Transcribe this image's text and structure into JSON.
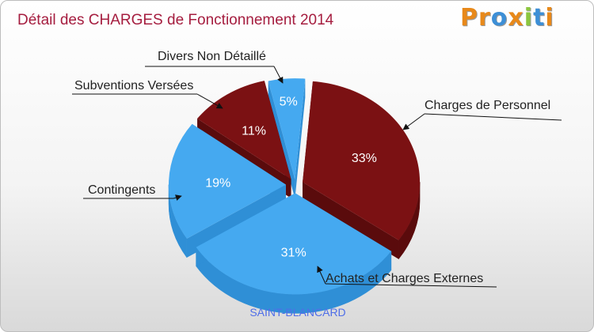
{
  "chart_data": {
    "type": "pie",
    "title": "Détail des CHARGES de Fonctionnement 2014",
    "subtitle": "SAINT-BLANCARD",
    "slices": [
      {
        "label": "Charges de Personnel",
        "value": 33,
        "pct_label": "33%",
        "color": "#7b1113",
        "side_color": "#5a0b0c"
      },
      {
        "label": "Achats et Charges Externes",
        "value": 31,
        "pct_label": "31%",
        "color": "#45a9f0",
        "side_color": "#2f8fd6"
      },
      {
        "label": "Contingents",
        "value": 19,
        "pct_label": "19%",
        "color": "#45a9f0",
        "side_color": "#2f8fd6"
      },
      {
        "label": "Subventions Versées",
        "value": 11,
        "pct_label": "11%",
        "color": "#7b1113",
        "side_color": "#5a0b0c"
      },
      {
        "label": "Divers Non Détaillé",
        "value": 5,
        "pct_label": "5%",
        "color": "#45a9f0",
        "side_color": "#2f8fd6"
      }
    ]
  },
  "logo": {
    "letters": [
      "P",
      "r",
      "o",
      "x",
      "i",
      "t",
      "i"
    ],
    "colors": [
      "#e8891a",
      "#e8891a",
      "#3d8fd6",
      "#e8891a",
      "#8cc63f",
      "#3d8fd6",
      "#e8891a"
    ]
  }
}
